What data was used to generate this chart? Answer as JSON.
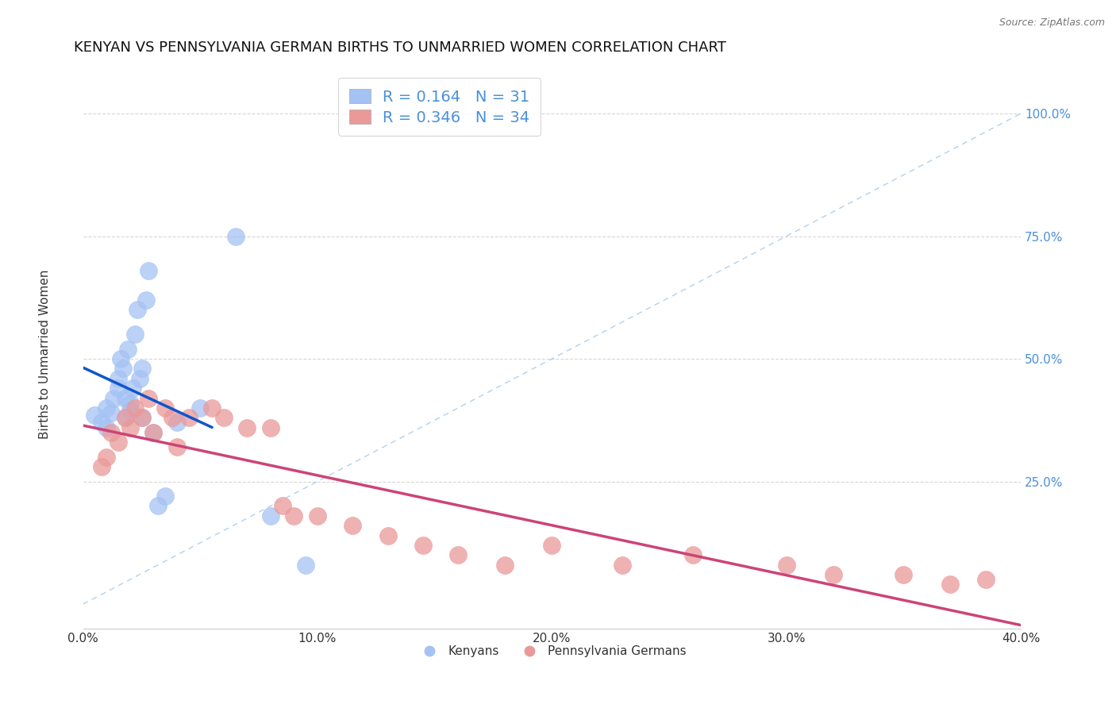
{
  "title": "KENYAN VS PENNSYLVANIA GERMAN BIRTHS TO UNMARRIED WOMEN CORRELATION CHART",
  "source": "Source: ZipAtlas.com",
  "ylabel": "Births to Unmarried Women",
  "xlim": [
    0.0,
    0.4
  ],
  "ylim": [
    -0.05,
    1.1
  ],
  "xticks": [
    0.0,
    0.1,
    0.2,
    0.3,
    0.4
  ],
  "xtick_labels": [
    "0.0%",
    "10.0%",
    "20.0%",
    "30.0%",
    "40.0%"
  ],
  "yticks": [
    0.25,
    0.5,
    0.75,
    1.0
  ],
  "ytick_labels": [
    "25.0%",
    "50.0%",
    "75.0%",
    "100.0%"
  ],
  "kenyan_color": "#a4c2f4",
  "penn_color": "#ea9999",
  "kenyan_line_color": "#1155cc",
  "penn_line_color": "#cc4477",
  "diag_line_color": "#9fc5e8",
  "kenyan_R": 0.164,
  "kenyan_N": 31,
  "penn_R": 0.346,
  "penn_N": 34,
  "kenyan_x": [
    0.005,
    0.008,
    0.01,
    0.01,
    0.012,
    0.013,
    0.015,
    0.015,
    0.016,
    0.017,
    0.018,
    0.018,
    0.019,
    0.02,
    0.02,
    0.021,
    0.022,
    0.023,
    0.024,
    0.025,
    0.025,
    0.027,
    0.028,
    0.03,
    0.032,
    0.035,
    0.04,
    0.05,
    0.065,
    0.08,
    0.095
  ],
  "kenyan_y": [
    0.385,
    0.37,
    0.36,
    0.4,
    0.39,
    0.42,
    0.44,
    0.46,
    0.5,
    0.48,
    0.38,
    0.42,
    0.52,
    0.395,
    0.41,
    0.44,
    0.55,
    0.6,
    0.46,
    0.48,
    0.38,
    0.62,
    0.68,
    0.35,
    0.2,
    0.22,
    0.37,
    0.4,
    0.75,
    0.18,
    0.08
  ],
  "penn_x": [
    0.008,
    0.01,
    0.012,
    0.015,
    0.018,
    0.02,
    0.022,
    0.025,
    0.028,
    0.03,
    0.035,
    0.038,
    0.04,
    0.045,
    0.055,
    0.06,
    0.07,
    0.08,
    0.085,
    0.09,
    0.1,
    0.115,
    0.13,
    0.145,
    0.16,
    0.18,
    0.2,
    0.23,
    0.26,
    0.3,
    0.32,
    0.35,
    0.37,
    0.385
  ],
  "penn_y": [
    0.28,
    0.3,
    0.35,
    0.33,
    0.38,
    0.36,
    0.4,
    0.38,
    0.42,
    0.35,
    0.4,
    0.38,
    0.32,
    0.38,
    0.4,
    0.38,
    0.36,
    0.36,
    0.2,
    0.18,
    0.18,
    0.16,
    0.14,
    0.12,
    0.1,
    0.08,
    0.12,
    0.08,
    0.1,
    0.08,
    0.06,
    0.06,
    0.04,
    0.05
  ],
  "background_color": "#ffffff",
  "grid_color": "#cccccc",
  "title_fontsize": 13,
  "axis_label_fontsize": 11,
  "tick_fontsize": 11,
  "tick_color": "#4a90d9",
  "legend_fontsize": 14
}
